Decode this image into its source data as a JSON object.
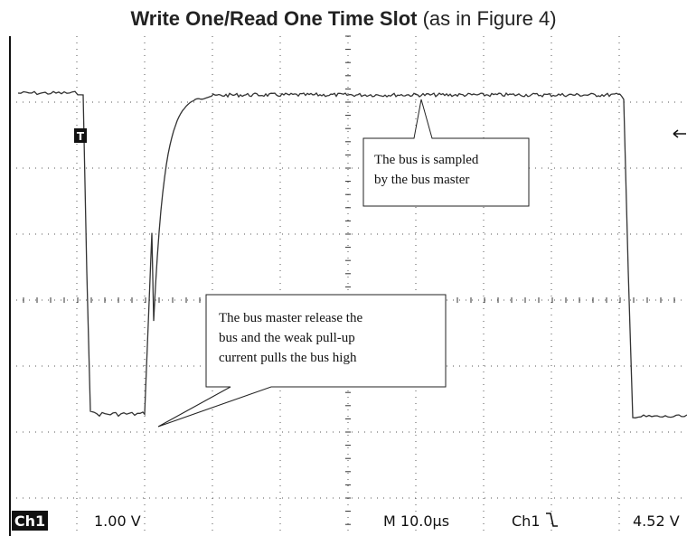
{
  "title": {
    "main": "Write One/Read One Time Slot",
    "note": "(as in Figure 4)"
  },
  "trigger_marker": "T",
  "callouts": [
    {
      "lines": [
        "The bus is sampled",
        "by the bus master"
      ]
    },
    {
      "lines": [
        "The bus master release the",
        "bus and the weak pull-up",
        "current pulls the bus high"
      ]
    }
  ],
  "status_bar": {
    "channel": "Ch1",
    "volts_per_div": "1.00 V",
    "timebase": "M 10.0µs",
    "trigger_channel": "Ch1",
    "trigger_level": "4.52 V"
  }
}
